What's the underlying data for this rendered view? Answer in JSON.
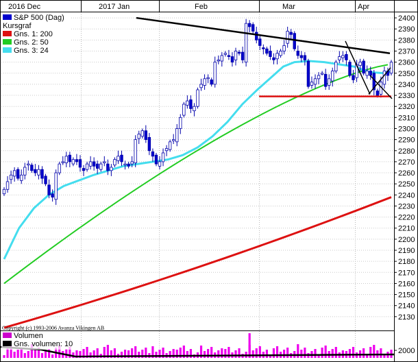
{
  "chart_data": {
    "type": "candlestick",
    "x_axis_labels": [
      "2016 Dec",
      "2017 Jan",
      "Feb",
      "Mar",
      "Apr"
    ],
    "y_axis": {
      "min": 2120,
      "max": 2405,
      "step": 10,
      "side": "right"
    },
    "grid": true,
    "legend_entries": [
      {
        "label": "S&P 500 (Dag)",
        "color": "#0000cc"
      },
      {
        "label": "Kursgraf",
        "color": null
      },
      {
        "label": "Gns. 1: 200",
        "color": "#dd1111"
      },
      {
        "label": "Gns. 2: 50",
        "color": "#22cc22"
      },
      {
        "label": "Gns. 3: 24",
        "color": "#44ddee"
      }
    ],
    "copyright": "Copyright (c) 1993-2006 Avanza Vikingen AB",
    "volume_panel": {
      "legend_entries": [
        {
          "label": "Volumen",
          "color": "#cc00cc"
        },
        {
          "label": "Gns. volumen: 10",
          "color": "#000000"
        }
      ],
      "tick_label": "2000"
    },
    "ma200": {
      "start": 2120,
      "end": 2238
    },
    "ma50": {
      "start": 2160,
      "end": 2358
    },
    "ma24": [
      [
        0,
        2182
      ],
      [
        8,
        2210
      ],
      [
        16,
        2228
      ],
      [
        24,
        2240
      ],
      [
        32,
        2248
      ],
      [
        40,
        2253
      ],
      [
        48,
        2258
      ],
      [
        56,
        2262
      ],
      [
        64,
        2266
      ],
      [
        72,
        2268
      ],
      [
        80,
        2270
      ],
      [
        88,
        2272
      ],
      [
        96,
        2276
      ],
      [
        104,
        2283
      ],
      [
        112,
        2293
      ],
      [
        120,
        2306
      ],
      [
        128,
        2322
      ],
      [
        136,
        2335
      ],
      [
        144,
        2347
      ],
      [
        150,
        2356
      ],
      [
        156,
        2360
      ],
      [
        164,
        2361
      ],
      [
        172,
        2360
      ],
      [
        180,
        2358
      ],
      [
        188,
        2356
      ],
      [
        196,
        2351
      ],
      [
        204,
        2350
      ],
      [
        208,
        2352
      ]
    ],
    "series_close": [
      2245,
      2252,
      2258,
      2262,
      2255,
      2258,
      2265,
      2268,
      2262,
      2260,
      2263,
      2255,
      2250,
      2240,
      2238,
      2260,
      2268,
      2270,
      2275,
      2270,
      2272,
      2270,
      2265,
      2262,
      2268,
      2270,
      2266,
      2264,
      2268,
      2270,
      2262,
      2265,
      2272,
      2275,
      2270,
      2268,
      2266,
      2270,
      2290,
      2295,
      2298,
      2290,
      2280,
      2275,
      2268,
      2270,
      2278,
      2282,
      2288,
      2290,
      2300,
      2310,
      2322,
      2325,
      2318,
      2320,
      2335,
      2340,
      2345,
      2346,
      2340,
      2360,
      2362,
      2366,
      2368,
      2365,
      2360,
      2370,
      2368,
      2362,
      2395,
      2392,
      2388,
      2380,
      2375,
      2372,
      2368,
      2365,
      2362,
      2368,
      2370,
      2375,
      2388,
      2385,
      2372,
      2366,
      2364,
      2362,
      2338,
      2342,
      2345,
      2348,
      2350,
      2338,
      2345,
      2352,
      2360,
      2365,
      2366,
      2362,
      2348,
      2344,
      2358,
      2360,
      2350,
      2352,
      2348,
      2335,
      2330,
      2342,
      2352,
      2348,
      2360
    ],
    "trendline_descending": [
      [
        2400,
        71
      ],
      [
        2368,
        208
      ]
    ],
    "support_line": {
      "value": 2329,
      "from": 137,
      "to": 208
    }
  }
}
